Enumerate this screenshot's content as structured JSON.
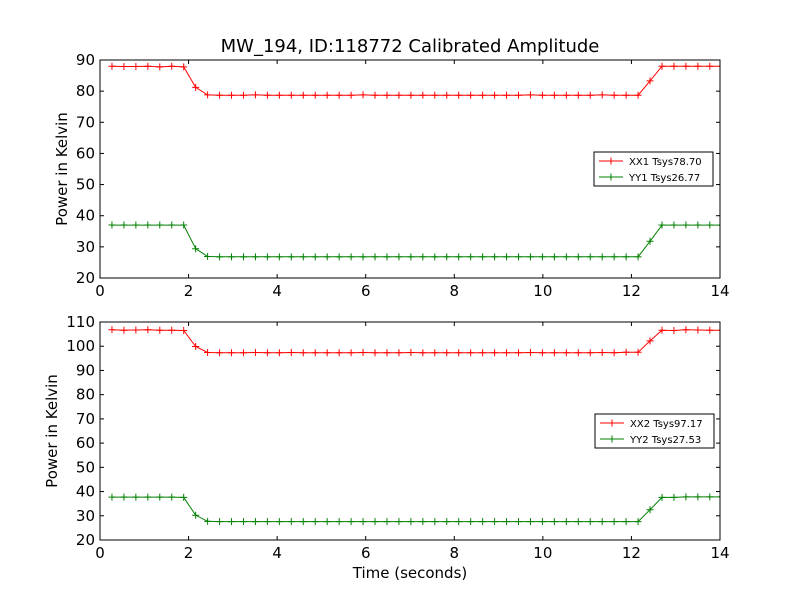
{
  "chart_data": {
    "type": "line",
    "title": "MW_194, ID:118772 Calibrated Amplitude",
    "xlabel": "Time (seconds)",
    "colors": {
      "XX": "#ff0000",
      "YY": "#008000"
    },
    "legend_position": "center-right",
    "x": [
      0.27,
      0.54,
      0.81,
      1.08,
      1.35,
      1.62,
      1.89,
      2.16,
      2.43,
      2.7,
      2.97,
      3.24,
      3.51,
      3.78,
      4.05,
      4.32,
      4.59,
      4.86,
      5.13,
      5.4,
      5.67,
      5.94,
      6.21,
      6.48,
      6.75,
      7.02,
      7.29,
      7.56,
      7.83,
      8.1,
      8.37,
      8.64,
      8.91,
      9.18,
      9.45,
      9.72,
      9.99,
      10.26,
      10.53,
      10.8,
      11.07,
      11.34,
      11.61,
      11.88,
      12.15,
      12.42,
      12.69,
      12.96,
      13.23,
      13.5,
      13.77,
      14.04
    ],
    "panels": [
      {
        "ylabel": "Power in Kelvin",
        "xlim": [
          0,
          14
        ],
        "ylim": [
          20,
          90
        ],
        "xticks": [
          0,
          2,
          4,
          6,
          8,
          10,
          12,
          14
        ],
        "yticks": [
          20,
          30,
          40,
          50,
          60,
          70,
          80,
          90
        ],
        "series": [
          {
            "name": "XX1 Tsys78.70",
            "color": "#ff0000",
            "values": [
              88.0,
              87.9,
              87.9,
              88.0,
              87.8,
              88.0,
              87.8,
              81.2,
              78.8,
              78.7,
              78.7,
              78.7,
              78.8,
              78.7,
              78.7,
              78.7,
              78.7,
              78.7,
              78.7,
              78.7,
              78.7,
              78.8,
              78.7,
              78.7,
              78.7,
              78.7,
              78.7,
              78.7,
              78.7,
              78.7,
              78.7,
              78.7,
              78.7,
              78.7,
              78.7,
              78.8,
              78.7,
              78.7,
              78.7,
              78.7,
              78.7,
              78.8,
              78.7,
              78.7,
              78.7,
              83.3,
              88.0,
              88.0,
              88.0,
              88.0,
              88.0,
              88.0
            ]
          },
          {
            "name": "YY1 Tsys26.77",
            "color": "#008000",
            "values": [
              37.0,
              37.0,
              37.0,
              37.0,
              37.0,
              37.0,
              37.0,
              29.4,
              26.9,
              26.8,
              26.8,
              26.8,
              26.8,
              26.8,
              26.8,
              26.8,
              26.8,
              26.8,
              26.8,
              26.8,
              26.8,
              26.8,
              26.8,
              26.8,
              26.8,
              26.8,
              26.8,
              26.8,
              26.8,
              26.8,
              26.8,
              26.8,
              26.8,
              26.8,
              26.8,
              26.8,
              26.8,
              26.8,
              26.8,
              26.8,
              26.8,
              26.8,
              26.8,
              26.8,
              26.8,
              31.8,
              37.0,
              37.0,
              37.0,
              37.0,
              37.0,
              37.0
            ]
          }
        ]
      },
      {
        "ylabel": "Power in Kelvin",
        "xlim": [
          0,
          14
        ],
        "ylim": [
          20,
          110
        ],
        "xticks": [
          0,
          2,
          4,
          6,
          8,
          10,
          12,
          14
        ],
        "yticks": [
          20,
          30,
          40,
          50,
          60,
          70,
          80,
          90,
          100,
          110
        ],
        "series": [
          {
            "name": "XX2 Tsys97.17",
            "color": "#ff0000",
            "values": [
              106.8,
              106.6,
              106.7,
              106.8,
              106.6,
              106.6,
              106.5,
              99.9,
              97.4,
              97.3,
              97.3,
              97.3,
              97.4,
              97.3,
              97.3,
              97.4,
              97.3,
              97.3,
              97.3,
              97.3,
              97.3,
              97.4,
              97.3,
              97.3,
              97.3,
              97.4,
              97.3,
              97.3,
              97.3,
              97.3,
              97.3,
              97.3,
              97.3,
              97.3,
              97.3,
              97.4,
              97.3,
              97.3,
              97.3,
              97.3,
              97.3,
              97.4,
              97.3,
              97.5,
              97.5,
              102.2,
              106.6,
              106.5,
              106.8,
              106.7,
              106.6,
              106.6
            ]
          },
          {
            "name": "YY2 Tsys27.53",
            "color": "#008000",
            "values": [
              37.7,
              37.7,
              37.7,
              37.7,
              37.7,
              37.7,
              37.6,
              30.2,
              27.7,
              27.6,
              27.6,
              27.6,
              27.6,
              27.6,
              27.6,
              27.6,
              27.6,
              27.6,
              27.6,
              27.6,
              27.6,
              27.6,
              27.6,
              27.6,
              27.6,
              27.6,
              27.6,
              27.6,
              27.6,
              27.6,
              27.6,
              27.6,
              27.6,
              27.6,
              27.6,
              27.6,
              27.6,
              27.6,
              27.6,
              27.6,
              27.6,
              27.6,
              27.6,
              27.6,
              27.6,
              32.5,
              37.6,
              37.6,
              37.8,
              37.8,
              37.8,
              37.8
            ]
          }
        ]
      }
    ]
  }
}
